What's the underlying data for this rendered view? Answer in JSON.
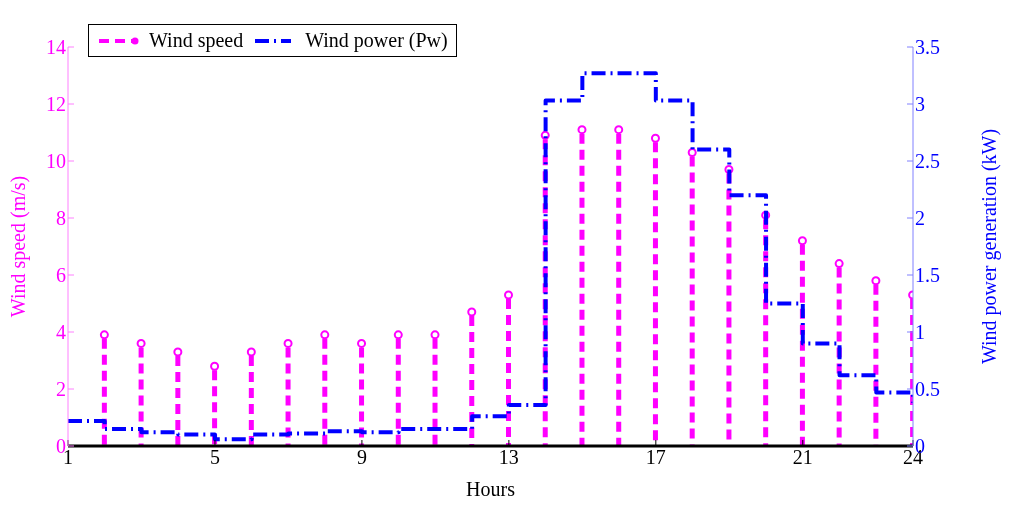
{
  "chart_data": {
    "type": "lollipop",
    "xlabel": "Hours",
    "ylabel": "Wind speed (m/s)",
    "y2label": "Wind power generation (kW)",
    "xlim": [
      1,
      24
    ],
    "xticks": [
      1,
      5,
      9,
      13,
      17,
      21,
      24
    ],
    "ylim": [
      0,
      14
    ],
    "yticks": [
      0,
      2,
      4,
      6,
      8,
      10,
      12,
      14
    ],
    "y2lim": [
      0,
      3.5
    ],
    "y2ticks": [
      0,
      0.5,
      1,
      1.5,
      2,
      2.5,
      3,
      3.5
    ],
    "legend": "top left",
    "grid": false,
    "series": [
      {
        "name": "Wind speed",
        "color": "#ff00ff",
        "marker": "circle",
        "line_style": "dashed",
        "x": [
          2,
          3,
          4,
          5,
          6,
          7,
          8,
          9,
          10,
          11,
          12,
          13,
          14,
          15,
          16,
          17,
          18,
          19,
          20,
          21,
          22,
          23,
          24
        ],
        "values": [
          3.9,
          3.6,
          3.3,
          2.8,
          3.3,
          3.6,
          3.9,
          3.6,
          3.9,
          3.9,
          4.7,
          5.3,
          10.9,
          11.1,
          11.1,
          10.8,
          10.3,
          9.7,
          8.1,
          7.2,
          6.4,
          5.8,
          5.3
        ]
      },
      {
        "name": "Wind power (Pw)",
        "type": "step",
        "axis": "y2",
        "color": "#0000ff",
        "marker": "none",
        "line_style": "dashed",
        "x": [
          1,
          2,
          3,
          4,
          5,
          6,
          7,
          8,
          9,
          10,
          11,
          12,
          13,
          14,
          15,
          16,
          17,
          18,
          19,
          20,
          21,
          22,
          23,
          24
        ],
        "values": [
          0.22,
          0.15,
          0.12,
          0.1,
          0.06,
          0.1,
          0.11,
          0.13,
          0.12,
          0.15,
          0.15,
          0.26,
          0.36,
          3.03,
          3.27,
          3.27,
          3.03,
          2.6,
          2.2,
          1.25,
          0.9,
          0.62,
          0.47,
          0.38
        ]
      }
    ]
  }
}
